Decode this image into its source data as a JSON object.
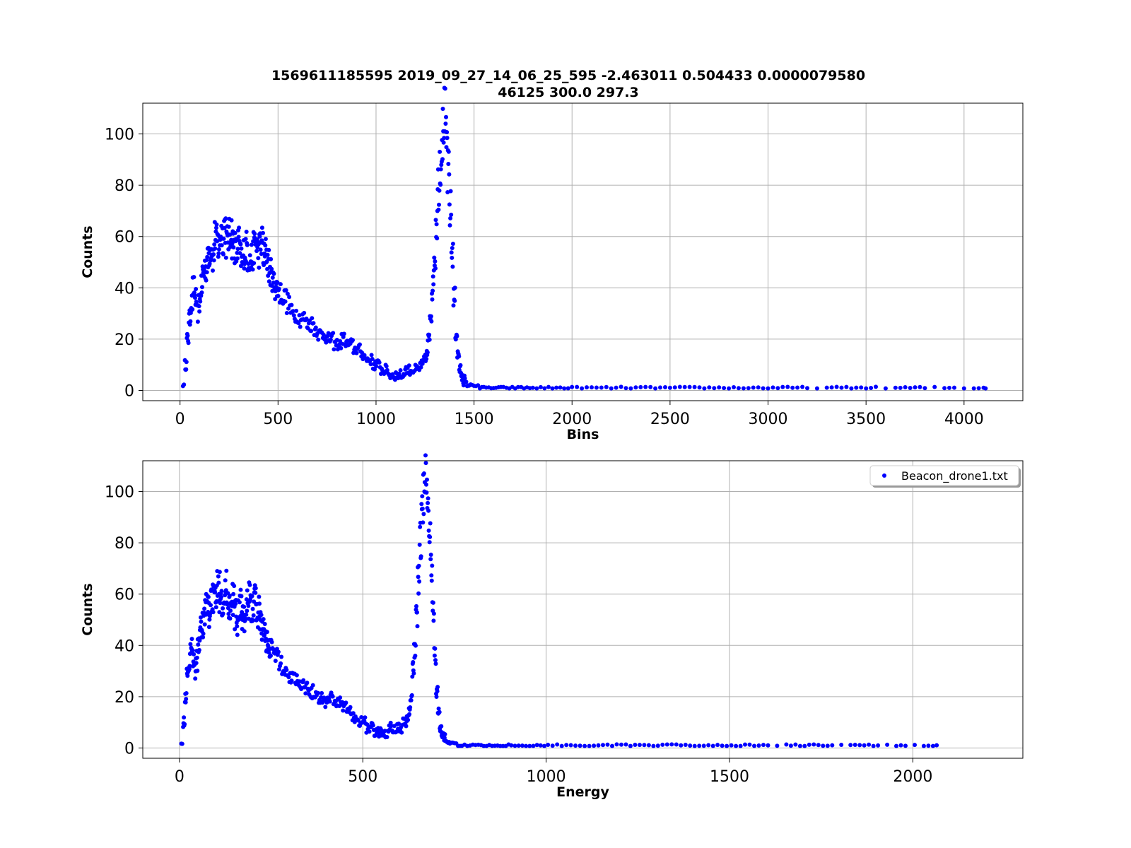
{
  "figure": {
    "title_line1": "1569611185595 2019_09_27_14_06_25_595 -2.463011 0.504433  0.0000079580",
    "title_line2": "46125  300.0  297.3"
  },
  "colors": {
    "points": "#0000ff",
    "grid": "#b0b0b0"
  },
  "chart_data": [
    {
      "type": "scatter",
      "xlabel": "Bins",
      "ylabel": "Counts",
      "xlim": [
        -190,
        4300
      ],
      "ylim": [
        -4,
        112
      ],
      "xticks": [
        0,
        500,
        1000,
        1500,
        2000,
        2500,
        3000,
        3500,
        4000
      ],
      "yticks": [
        0,
        20,
        40,
        60,
        80,
        100
      ],
      "grid": true,
      "legend": null,
      "series": [
        {
          "x": [
            15,
            25,
            35,
            45,
            55,
            65,
            75,
            85,
            95,
            105,
            115,
            125,
            135,
            145,
            155,
            165,
            175,
            185,
            195,
            205,
            215,
            225,
            235,
            245,
            255,
            265,
            275,
            285,
            295,
            305,
            315,
            325,
            335,
            345,
            355,
            365,
            375,
            385,
            395,
            405,
            415,
            425,
            435,
            445,
            455,
            465,
            475,
            485,
            495,
            505,
            525,
            545,
            565,
            585,
            605,
            625,
            645,
            665,
            685,
            705,
            725,
            745,
            765,
            785,
            805,
            825,
            845,
            865,
            885,
            905,
            925,
            945,
            965,
            985,
            1005,
            1025,
            1045,
            1065,
            1085,
            1105,
            1125,
            1145,
            1165,
            1185,
            1205,
            1225,
            1245,
            1255,
            1265,
            1275,
            1285,
            1295,
            1305,
            1315,
            1325,
            1335,
            1345,
            1355,
            1365,
            1375,
            1385,
            1395,
            1405,
            1415,
            1425,
            1435,
            1445,
            1455,
            1465,
            1475,
            1490,
            1510,
            1530,
            1550,
            1575,
            1600,
            1625,
            1650,
            1680,
            1710,
            1740,
            1770,
            1800,
            1840,
            1880,
            1920,
            1960,
            2000,
            2050,
            2100,
            2150,
            2200,
            2250,
            2300,
            2350,
            2400,
            2450,
            2500,
            2550,
            2600,
            2650,
            2700,
            2750,
            2800,
            2850,
            2900,
            2950,
            3000,
            3050,
            3100,
            3150,
            3200,
            3300,
            3350,
            3400,
            3450,
            3500,
            3550,
            3650,
            3700,
            3750,
            3800,
            3900,
            3950,
            4050,
            4100
          ],
          "y": [
            2,
            10,
            20,
            28,
            34,
            40,
            36,
            30,
            34,
            40,
            46,
            48,
            50,
            54,
            56,
            52,
            60,
            58,
            56,
            62,
            60,
            64,
            58,
            60,
            62,
            58,
            56,
            54,
            58,
            52,
            50,
            54,
            56,
            52,
            50,
            52,
            56,
            58,
            54,
            56,
            58,
            52,
            54,
            50,
            46,
            44,
            42,
            40,
            40,
            38,
            36,
            34,
            30,
            30,
            28,
            28,
            26,
            26,
            24,
            22,
            22,
            20,
            20,
            18,
            18,
            20,
            18,
            18,
            16,
            16,
            14,
            12,
            12,
            10,
            10,
            8,
            8,
            6,
            6,
            6,
            6,
            8,
            8,
            8,
            8,
            10,
            12,
            14,
            20,
            30,
            40,
            52,
            66,
            80,
            90,
            100,
            106,
            96,
            84,
            70,
            54,
            36,
            22,
            14,
            8,
            5,
            4,
            3,
            2,
            2,
            2,
            2,
            1,
            1,
            1,
            1,
            1,
            1,
            1,
            1,
            1,
            1,
            1,
            1,
            1,
            1,
            1,
            1,
            1,
            1,
            1,
            1,
            1,
            1,
            1,
            1,
            1,
            1,
            1,
            1,
            1,
            1,
            1,
            1,
            1,
            1,
            1,
            1,
            1,
            1,
            1,
            1,
            1,
            1,
            1,
            1,
            1,
            1,
            1,
            1,
            1,
            1,
            1,
            1,
            1,
            1
          ]
        }
      ]
    },
    {
      "type": "scatter",
      "xlabel": "Energy",
      "ylabel": "Counts",
      "xlim": [
        -100,
        2300
      ],
      "ylim": [
        -4,
        112
      ],
      "xticks": [
        0,
        500,
        1000,
        1500,
        2000
      ],
      "yticks": [
        0,
        20,
        40,
        60,
        80,
        100
      ],
      "grid": true,
      "legend": {
        "label": "Beacon_drone1.txt",
        "position": "top-right"
      },
      "series": [
        {
          "name": "Beacon_drone1.txt",
          "x": [
            5,
            10,
            15,
            20,
            25,
            30,
            35,
            40,
            45,
            50,
            55,
            60,
            65,
            70,
            75,
            80,
            85,
            90,
            95,
            100,
            105,
            110,
            115,
            120,
            125,
            130,
            135,
            140,
            145,
            150,
            155,
            160,
            165,
            170,
            175,
            180,
            185,
            190,
            195,
            200,
            205,
            210,
            215,
            220,
            225,
            230,
            235,
            240,
            245,
            250,
            260,
            270,
            280,
            290,
            300,
            310,
            320,
            330,
            340,
            350,
            360,
            370,
            380,
            390,
            400,
            410,
            420,
            430,
            440,
            450,
            460,
            470,
            480,
            490,
            500,
            510,
            520,
            530,
            540,
            550,
            560,
            570,
            580,
            590,
            600,
            610,
            620,
            625,
            630,
            635,
            640,
            645,
            650,
            655,
            660,
            665,
            670,
            675,
            680,
            685,
            690,
            695,
            700,
            705,
            710,
            715,
            720,
            725,
            730,
            735,
            740,
            750,
            760,
            770,
            785,
            800,
            815,
            830,
            845,
            860,
            875,
            890,
            905,
            925,
            945,
            965,
            985,
            1005,
            1030,
            1055,
            1080,
            1105,
            1130,
            1155,
            1180,
            1205,
            1230,
            1255,
            1280,
            1305,
            1330,
            1355,
            1380,
            1405,
            1430,
            1455,
            1480,
            1505,
            1530,
            1555,
            1580,
            1605,
            1655,
            1680,
            1705,
            1730,
            1755,
            1780,
            1830,
            1855,
            1880,
            1905,
            1955,
            1980,
            2030,
            2055
          ],
          "y": [
            2,
            10,
            20,
            28,
            34,
            40,
            36,
            30,
            34,
            40,
            46,
            48,
            50,
            54,
            56,
            52,
            60,
            58,
            56,
            62,
            60,
            64,
            58,
            60,
            62,
            58,
            56,
            54,
            58,
            52,
            50,
            54,
            56,
            52,
            50,
            52,
            56,
            58,
            54,
            56,
            58,
            52,
            54,
            50,
            46,
            44,
            42,
            40,
            40,
            38,
            36,
            34,
            30,
            30,
            28,
            28,
            26,
            26,
            24,
            22,
            22,
            20,
            20,
            18,
            18,
            20,
            18,
            18,
            16,
            16,
            14,
            12,
            12,
            10,
            10,
            8,
            8,
            6,
            6,
            6,
            6,
            8,
            8,
            8,
            8,
            10,
            12,
            14,
            20,
            30,
            40,
            52,
            66,
            80,
            90,
            100,
            106,
            96,
            84,
            70,
            54,
            36,
            22,
            14,
            8,
            5,
            4,
            3,
            2,
            2,
            2,
            2,
            1,
            1,
            1,
            1,
            1,
            1,
            1,
            1,
            1,
            1,
            1,
            1,
            1,
            1,
            1,
            1,
            1,
            1,
            1,
            1,
            1,
            1,
            1,
            1,
            1,
            1,
            1,
            1,
            1,
            1,
            1,
            1,
            1,
            1,
            1,
            1,
            1,
            1,
            1,
            1,
            1,
            1,
            1,
            1,
            1,
            1,
            1,
            1,
            1,
            1,
            1,
            1,
            1,
            1
          ]
        }
      ]
    }
  ]
}
